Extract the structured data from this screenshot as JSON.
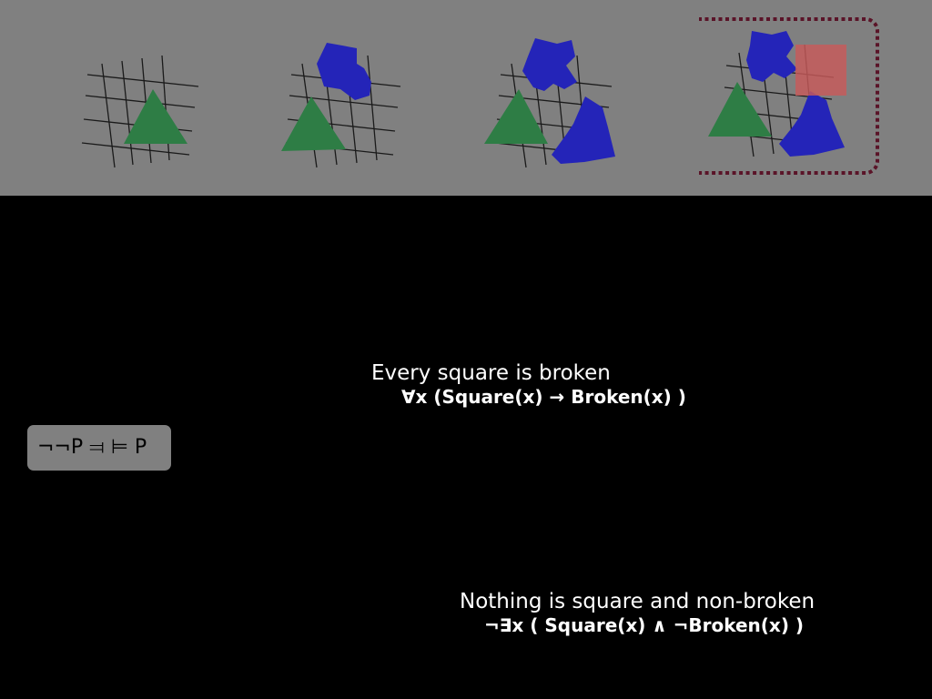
{
  "worlds": [
    {
      "name": "world-1",
      "shapes": [
        "green-triangle"
      ],
      "highlighted": false
    },
    {
      "name": "world-2",
      "shapes": [
        "green-triangle",
        "blue-blob"
      ],
      "highlighted": false
    },
    {
      "name": "world-3",
      "shapes": [
        "green-triangle",
        "blue-blob",
        "blue-blob"
      ],
      "highlighted": false
    },
    {
      "name": "world-4",
      "shapes": [
        "green-triangle",
        "blue-blob",
        "blue-blob",
        "red-square"
      ],
      "highlighted": true
    }
  ],
  "colors": {
    "background": "#000000",
    "strip": "#808080",
    "grid_line": "#1a1a1a",
    "triangle": "#2e7d45",
    "blob": "#2424b8",
    "square": "#c85a5a",
    "highlight_border": "#5a1428",
    "text": "#ffffff",
    "box_text": "#000000"
  },
  "equivalence": {
    "text": "¬¬P ⫤ ⊨ P"
  },
  "sentences": [
    {
      "english": "Every square is broken",
      "formula": "∀x (Square(x) → Broken(x) )"
    },
    {
      "english": "Nothing is square and non-broken",
      "formula": "¬∃x ( Square(x) ∧ ¬Broken(x) )"
    }
  ]
}
